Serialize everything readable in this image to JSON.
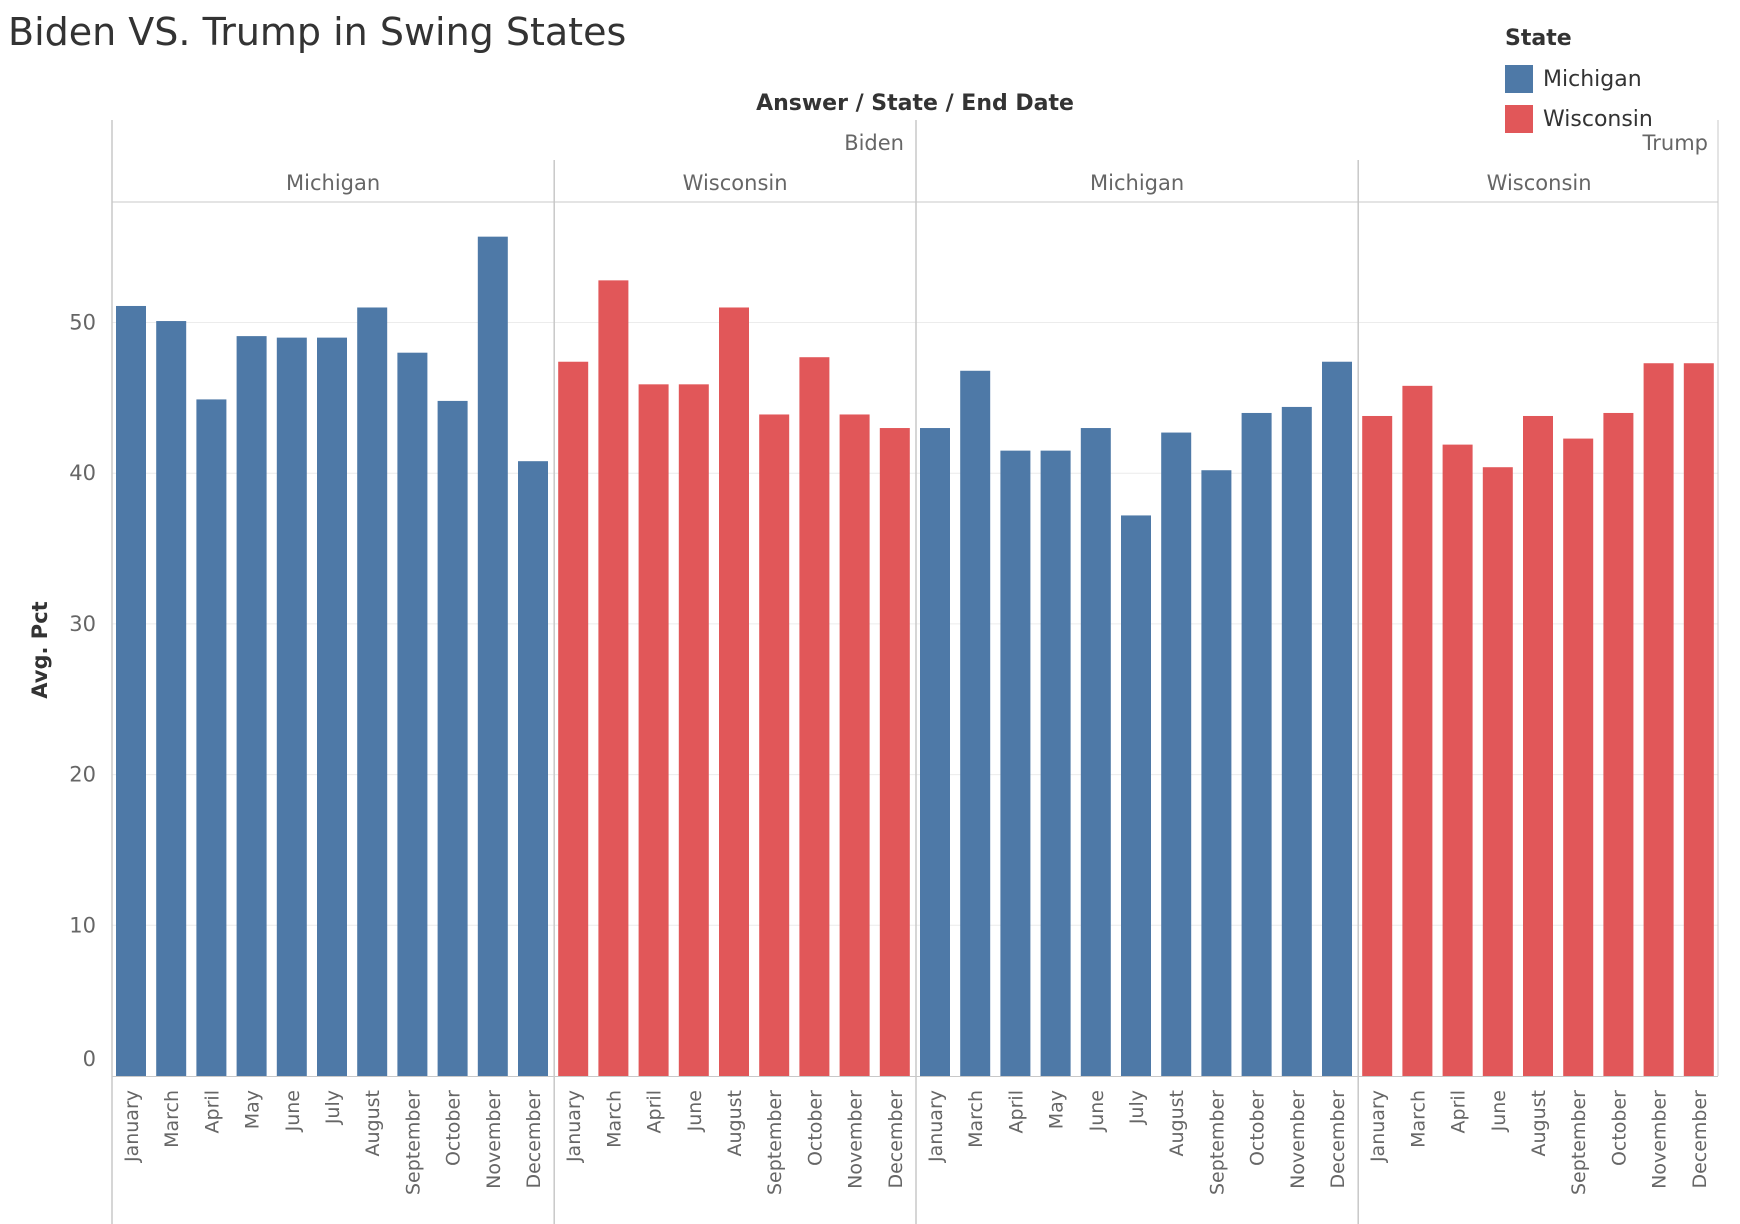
{
  "title": "Biden VS. Trump in Swing States",
  "legend": {
    "title": "State",
    "items": [
      {
        "label": "Michigan",
        "color": "#4e79a7"
      },
      {
        "label": "Wisconsin",
        "color": "#e15759"
      }
    ]
  },
  "chart_data": {
    "type": "bar",
    "title": "Biden VS. Trump in Swing States",
    "header_label": "Answer / State / End Date",
    "ylabel": "Avg. Pct",
    "ylim": [
      0,
      58
    ],
    "yticks": [
      0,
      10,
      20,
      30,
      40,
      50
    ],
    "grid": true,
    "legend_position": "top-right",
    "panels": [
      {
        "answer": "Biden",
        "state": "Michigan",
        "categories": [
          "January",
          "March",
          "April",
          "May",
          "June",
          "July",
          "August",
          "September",
          "October",
          "November",
          "December"
        ],
        "values": [
          51.1,
          50.1,
          44.9,
          49.1,
          49.0,
          49.0,
          51.0,
          48.0,
          44.8,
          55.7,
          40.8
        ]
      },
      {
        "answer": "Biden",
        "state": "Wisconsin",
        "categories": [
          "January",
          "March",
          "April",
          "June",
          "August",
          "September",
          "October",
          "November",
          "December"
        ],
        "values": [
          47.4,
          52.8,
          45.9,
          45.9,
          51.0,
          43.9,
          47.7,
          43.9,
          43.0
        ]
      },
      {
        "answer": "Trump",
        "state": "Michigan",
        "categories": [
          "January",
          "March",
          "April",
          "May",
          "June",
          "July",
          "August",
          "September",
          "October",
          "November",
          "December"
        ],
        "values": [
          43.0,
          46.8,
          41.5,
          41.5,
          43.0,
          37.2,
          42.7,
          40.2,
          44.0,
          44.4,
          47.4
        ]
      },
      {
        "answer": "Trump",
        "state": "Wisconsin",
        "categories": [
          "January",
          "March",
          "April",
          "June",
          "August",
          "September",
          "October",
          "November",
          "December"
        ],
        "values": [
          43.8,
          45.8,
          41.9,
          40.4,
          43.8,
          42.3,
          44.0,
          47.3,
          47.3
        ]
      }
    ]
  }
}
